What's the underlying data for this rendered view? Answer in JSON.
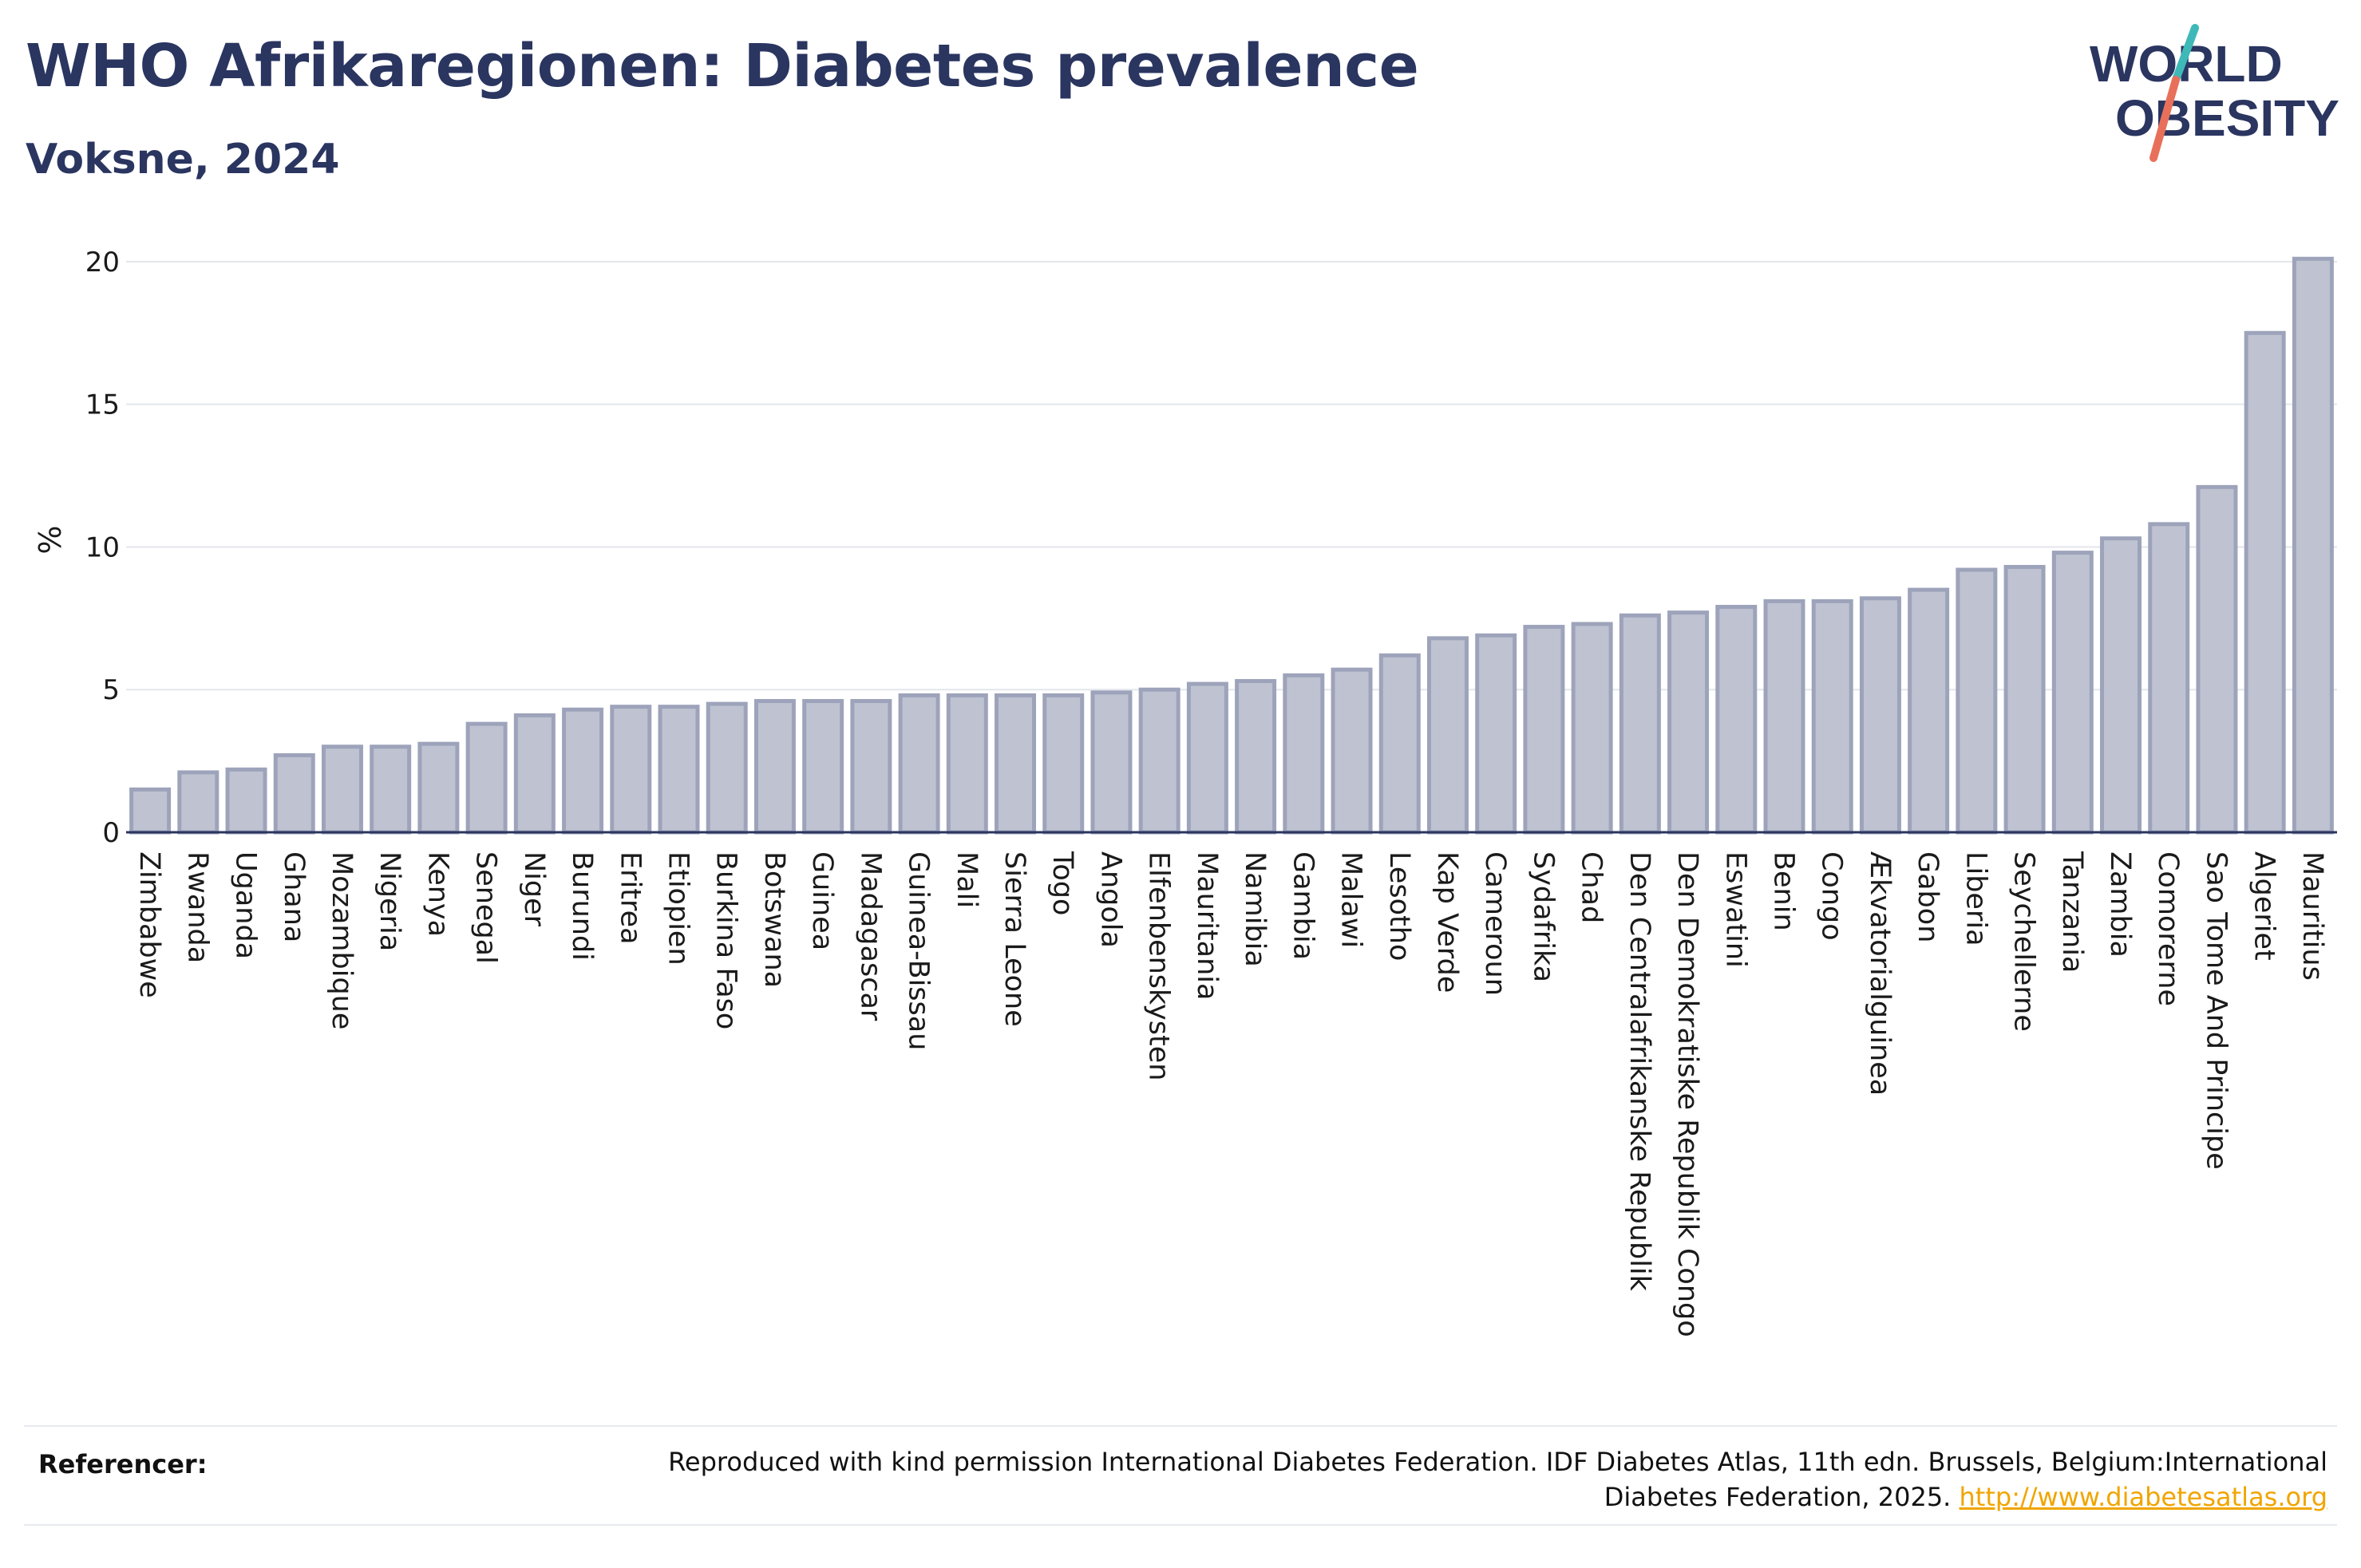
{
  "header": {
    "title": "WHO Afrikaregionen: Diabetes prevalence",
    "subtitle": "Voksne, 2024"
  },
  "logo": {
    "line1": "WORLD",
    "line2": "OBESITY",
    "colors": {
      "text": "#2a3560",
      "slash_teal": "#3fb8b8",
      "slash_coral": "#e8705a"
    }
  },
  "chart_data": {
    "type": "bar",
    "ylabel": "%",
    "ylim": [
      0,
      20.5
    ],
    "yticks": [
      0,
      5,
      10,
      15,
      20
    ],
    "grid": true,
    "bar_fill": "#bfc3d1",
    "bar_stroke": "#9da3ba",
    "categories": [
      "Zimbabwe",
      "Rwanda",
      "Uganda",
      "Ghana",
      "Mozambique",
      "Nigeria",
      "Kenya",
      "Senegal",
      "Niger",
      "Burundi",
      "Eritrea",
      "Etiopien",
      "Burkina Faso",
      "Botswana",
      "Guinea",
      "Madagascar",
      "Guinea-Bissau",
      "Mali",
      "Sierra Leone",
      "Togo",
      "Angola",
      "Elfenbenskysten",
      "Mauritania",
      "Namibia",
      "Gambia",
      "Malawi",
      "Lesotho",
      "Kap Verde",
      "Cameroun",
      "Sydafrika",
      "Chad",
      "Den Centralafrikanske Republik",
      "Den Demokratiske Republik Congo",
      "Eswatini",
      "Benin",
      "Congo",
      "Ækvatorialguinea",
      "Gabon",
      "Liberia",
      "Seychellerne",
      "Tanzania",
      "Zambia",
      "Comorerne",
      "Sao Tome And Principe",
      "Algeriet",
      "Mauritius"
    ],
    "values": [
      1.5,
      2.1,
      2.2,
      2.7,
      3.0,
      3.0,
      3.1,
      3.8,
      4.1,
      4.3,
      4.4,
      4.4,
      4.5,
      4.6,
      4.6,
      4.6,
      4.8,
      4.8,
      4.8,
      4.8,
      4.9,
      5.0,
      5.2,
      5.3,
      5.5,
      5.7,
      6.2,
      6.8,
      6.9,
      7.2,
      7.3,
      7.6,
      7.7,
      7.9,
      8.1,
      8.1,
      8.2,
      8.5,
      9.2,
      9.3,
      9.8,
      10.3,
      10.8,
      12.1,
      17.5,
      20.1
    ]
  },
  "footer": {
    "ref_label": "Referencer:",
    "ref_text": "Reproduced with kind permission International Diabetes Federation. IDF Diabetes Atlas, 11th edn. Brussels, Belgium:International Diabetes Federation, 2025.",
    "ref_link": "http://www.diabetesatlas.org"
  }
}
